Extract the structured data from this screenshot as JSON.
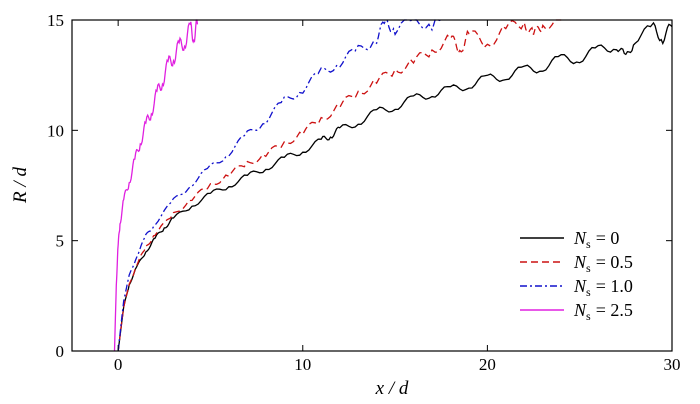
{
  "chart_data": {
    "type": "line",
    "title": "",
    "xlabel": "x / d",
    "ylabel": "R / d",
    "xlim": [
      -2.5,
      30
    ],
    "ylim": [
      0,
      15
    ],
    "xticks": [
      0,
      10,
      20,
      30
    ],
    "yticks": [
      0,
      5,
      10,
      15
    ],
    "xtick_labels": [
      "0",
      "10",
      "20",
      "30"
    ],
    "ytick_labels": [
      "0",
      "5",
      "10",
      "15"
    ],
    "grid": false,
    "legend_position": "bottom-right",
    "series": [
      {
        "name": "N_s = 0",
        "legend": {
          "symbol": "N",
          "sub": "s",
          "value": "= 0"
        },
        "color": "#000000",
        "dash": "solid",
        "x": [
          0,
          0.3,
          0.6,
          1,
          1.5,
          2,
          2.5,
          3,
          4,
          5,
          6,
          7,
          8,
          9,
          10,
          11,
          11.5,
          12,
          13,
          14,
          15,
          16,
          17,
          18,
          19,
          20,
          21,
          22,
          23,
          24,
          25,
          26,
          27,
          27.5,
          28,
          29,
          29.5,
          30
        ],
        "y": [
          0,
          2,
          3,
          3.8,
          4.5,
          5.1,
          5.6,
          6,
          6.6,
          7.1,
          7.5,
          7.9,
          8.3,
          8.7,
          9.1,
          9.5,
          9.8,
          10,
          10.4,
          10.8,
          11.1,
          11.4,
          11.7,
          11.8,
          12.1,
          12.3,
          12.5,
          12.7,
          12.9,
          13.2,
          13.3,
          13.6,
          13.9,
          13.2,
          14.2,
          14.6,
          14.2,
          14.7
        ]
      },
      {
        "name": "N_s = 0.5",
        "legend": {
          "symbol": "N",
          "sub": "s",
          "value": "= 0.5"
        },
        "color": "#cc1111",
        "dash": "dashed",
        "x": [
          0,
          0.3,
          0.6,
          1,
          1.5,
          2,
          3,
          4,
          5,
          6,
          7,
          8,
          9,
          10,
          11,
          12,
          13,
          14,
          15,
          16,
          17,
          18,
          18.5,
          19,
          20,
          21,
          22,
          22.5,
          23,
          24
        ],
        "y": [
          0,
          2,
          3,
          3.9,
          4.7,
          5.3,
          6.2,
          6.9,
          7.5,
          8,
          8.5,
          8.9,
          9.4,
          9.9,
          10.5,
          11.1,
          11.7,
          12.2,
          12.7,
          13.1,
          13.6,
          14.2,
          13.6,
          14.4,
          13.9,
          14.6,
          14.9,
          14.3,
          14.8,
          15
        ]
      },
      {
        "name": "N_s = 1.0",
        "legend": {
          "symbol": "N",
          "sub": "s",
          "value": "= 1.0"
        },
        "color": "#1111cc",
        "dash": "dashdot",
        "x": [
          0,
          0.3,
          0.6,
          1,
          1.5,
          2,
          3,
          4,
          5,
          6,
          7,
          8,
          9,
          10,
          11,
          12,
          13,
          14,
          14.5,
          15,
          16,
          17,
          17.5
        ],
        "y": [
          0,
          2.3,
          3.4,
          4.3,
          5.2,
          5.8,
          6.8,
          7.6,
          8.3,
          9,
          9.8,
          10.5,
          11.3,
          11.9,
          12.6,
          13.1,
          13.6,
          14.2,
          14.9,
          14.6,
          15,
          14.8,
          15
        ]
      },
      {
        "name": "N_s = 2.5",
        "legend": {
          "symbol": "N",
          "sub": "s",
          "value": "= 2.5"
        },
        "color": "#e020e0",
        "dash": "solid",
        "x": [
          -0.2,
          -0.1,
          0,
          0.1,
          0.3,
          0.6,
          0.9,
          1.2,
          1.5,
          1.8,
          2.1,
          2.4,
          2.7,
          3,
          3.3,
          3.6,
          3.9,
          4.1,
          4.3
        ],
        "y": [
          0,
          3,
          4.8,
          5.8,
          6.8,
          7.7,
          8.6,
          9.5,
          10.2,
          10.9,
          11.6,
          12.3,
          12.9,
          13.4,
          13.7,
          14.1,
          14.5,
          14.4,
          14.8
        ]
      }
    ]
  }
}
